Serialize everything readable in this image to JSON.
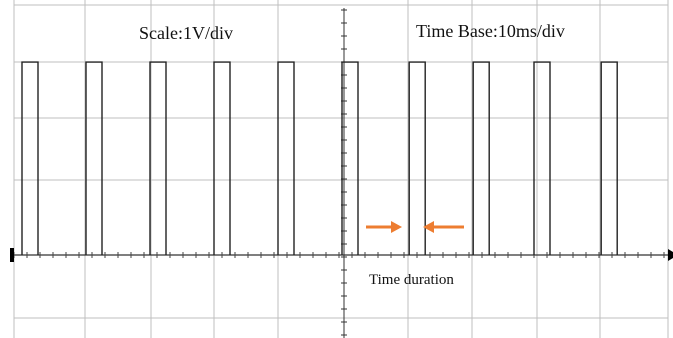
{
  "chart_data": {
    "type": "line",
    "title": "",
    "labels": {
      "scale": "Scale:1V/div",
      "time_base": "Time Base:10ms/div",
      "annotation": "Time duration"
    },
    "vertical_divisions": 7,
    "horizontal_divisions": 10,
    "units": {
      "volts_per_div": 1,
      "ms_per_div": 10
    },
    "xlim_ms": [
      0,
      100
    ],
    "ylim_div": [
      -2,
      5
    ],
    "grid": true,
    "series": [
      {
        "low_level_div": 0,
        "high_level_div": 3,
        "pulse_rises_ms": [
          0,
          20,
          40,
          60,
          80,
          100,
          121,
          141,
          160,
          181
        ],
        "pulse_width_ms": 5
      }
    ],
    "annotation_colour": "#ED7D31",
    "trace_colour": "#222222",
    "grid_colour": "#BFBFBF"
  }
}
